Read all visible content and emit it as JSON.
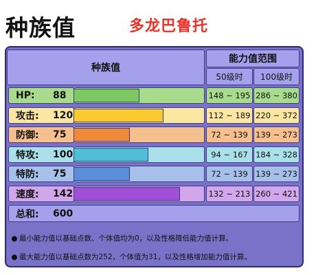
{
  "title": "种族值",
  "pokemon": "多龙巴鲁托",
  "header": {
    "stats_col": "种族值",
    "range_col": "能力值范围",
    "lv50": "50级时",
    "lv100": "100级时"
  },
  "max_stat_scale": 255,
  "stats": [
    {
      "name": "HP:",
      "value": "88",
      "fill": 0.345,
      "bar_color": "#7ec864",
      "row_bg": "#a8dc8c",
      "range50": "148 ~ 195",
      "range100": "286 ~ 380"
    },
    {
      "name": "攻击:",
      "value": "120",
      "fill": 0.47,
      "bar_color": "#f9cb2e",
      "row_bg": "#fbe6a2",
      "range50": "112 ~ 189",
      "range100": "220 ~ 372"
    },
    {
      "name": "防御:",
      "value": "75",
      "fill": 0.294,
      "bar_color": "#ef8a3a",
      "row_bg": "#f6c08e",
      "range50": "72 ~ 139",
      "range100": "139 ~ 273"
    },
    {
      "name": "特攻:",
      "value": "100",
      "fill": 0.392,
      "bar_color": "#4fbfd6",
      "row_bg": "#a9e0ea",
      "range50": "94 ~ 167",
      "range100": "184 ~ 328"
    },
    {
      "name": "特防:",
      "value": "75",
      "fill": 0.294,
      "bar_color": "#5b8ed8",
      "row_bg": "#a6c0ea",
      "range50": "72 ~ 139",
      "range100": "139 ~ 273"
    },
    {
      "name": "速度:",
      "value": "142",
      "fill": 0.557,
      "bar_color": "#a14fd6",
      "row_bg": "#d2a6ea",
      "range50": "132 ~ 213",
      "range100": "260 ~ 421"
    }
  ],
  "total": {
    "name": "总和:",
    "value": "600"
  },
  "notes": [
    "最小能力值以基础点数、个体值均为0，以及性格降低能力值计算。",
    "最大能力值以基础点数为252，个体值为31，以及性格增加能力值计算。"
  ],
  "colors": {
    "panel": "#7a72c8",
    "header": "#a4a0ec",
    "border": "#3e3b86",
    "name_red": "#e8322a"
  }
}
